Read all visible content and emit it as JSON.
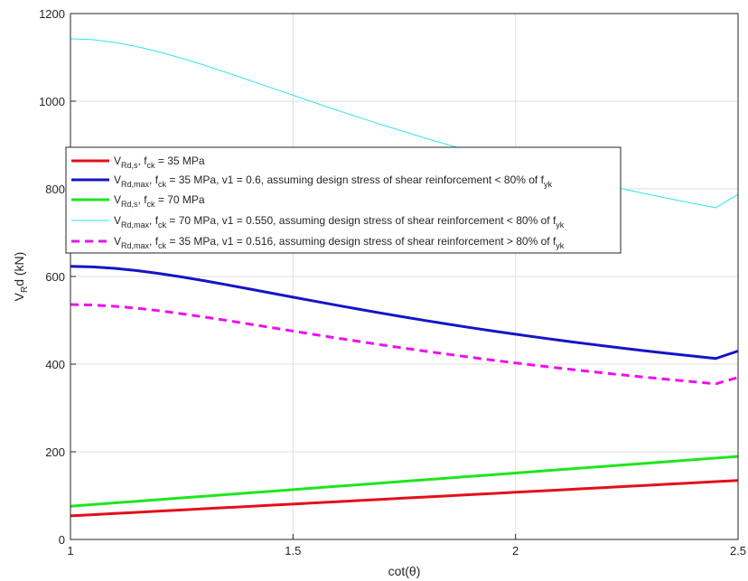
{
  "chart_data": {
    "type": "line",
    "xlabel": "cot(θ)",
    "ylabel": "V",
    "ylabel_sub": "R",
    "ylabel_rest": "d (kN)",
    "xlim": [
      1,
      2.5
    ],
    "ylim": [
      0,
      1200
    ],
    "grid": true,
    "legend_placement": "upper-left (inside, around y=700–850)",
    "x_ticks": [
      1,
      1.5,
      2,
      2.5
    ],
    "x_tick_labels": [
      "1",
      "1.5",
      "2",
      "2.5"
    ],
    "y_ticks": [
      0,
      200,
      400,
      600,
      800,
      1000,
      1200
    ],
    "y_tick_labels": [
      "0",
      "200",
      "400",
      "600",
      "800",
      "1000",
      "1200"
    ],
    "x": [
      1.0,
      1.05,
      1.1,
      1.15,
      1.2,
      1.25,
      1.3,
      1.35,
      1.4,
      1.45,
      1.5,
      1.55,
      1.6,
      1.65,
      1.7,
      1.75,
      1.8,
      1.85,
      1.9,
      1.95,
      2.0,
      2.05,
      2.1,
      2.15,
      2.2,
      2.25,
      2.3,
      2.35,
      2.4,
      2.45,
      2.5
    ],
    "series": [
      {
        "key": "vrds35",
        "legend_parts": [
          [
            "V",
            "normal"
          ],
          [
            "Rd,s",
            "sub"
          ],
          [
            ", f",
            "normal"
          ],
          [
            "ck",
            "sub"
          ],
          [
            " = 35 MPa",
            "normal"
          ]
        ],
        "color": "#e3101a",
        "width": 3,
        "dash": "",
        "values": [
          53.8,
          56.5,
          59.2,
          61.9,
          64.6,
          67.3,
          70.0,
          72.6,
          75.3,
          78.0,
          80.7,
          83.4,
          86.1,
          88.8,
          91.5,
          94.2,
          96.9,
          99.6,
          102.3,
          105.0,
          107.6,
          110.3,
          113.0,
          115.7,
          118.4,
          121.1,
          123.8,
          126.5,
          129.2,
          131.9,
          134.6
        ]
      },
      {
        "key": "vrdmax35",
        "legend_parts": [
          [
            "V",
            "normal"
          ],
          [
            "Rd,max",
            "sub"
          ],
          [
            ", f",
            "normal"
          ],
          [
            "ck",
            "sub"
          ],
          [
            " = 35 MPa, v1 = 0.6, assuming design stress of shear reinforcement < 80% of f",
            "normal"
          ],
          [
            "yk",
            "sub"
          ]
        ],
        "color": "#1414c8",
        "width": 3,
        "dash": "",
        "values": [
          623.2,
          622.0,
          618.6,
          613.4,
          606.7,
          598.9,
          590.4,
          581.3,
          571.9,
          562.4,
          552.9,
          543.4,
          534.1,
          525.0,
          516.1,
          507.5,
          499.1,
          491.0,
          483.1,
          475.5,
          468.2,
          461.2,
          454.4,
          447.8,
          441.4,
          435.3,
          429.4,
          423.7,
          418.2,
          412.9,
          429.9
        ]
      },
      {
        "key": "vrds70",
        "legend_parts": [
          [
            "V",
            "normal"
          ],
          [
            "Rd,s",
            "sub"
          ],
          [
            ", f",
            "normal"
          ],
          [
            "ck",
            "sub"
          ],
          [
            " = 70 MPa",
            "normal"
          ]
        ],
        "color": "#1ee61e",
        "width": 3,
        "dash": "",
        "values": [
          75.8,
          79.6,
          83.4,
          87.2,
          91.0,
          94.8,
          98.5,
          102.3,
          106.1,
          109.9,
          113.7,
          117.5,
          121.3,
          125.1,
          128.9,
          132.7,
          136.4,
          140.2,
          144.0,
          147.8,
          151.6,
          155.4,
          159.2,
          163.0,
          166.8,
          170.6,
          174.3,
          178.1,
          181.9,
          185.7,
          189.5
        ]
      },
      {
        "key": "vrdmax70",
        "legend_parts": [
          [
            "V",
            "normal"
          ],
          [
            "Rd,max",
            "sub"
          ],
          [
            ", f",
            "normal"
          ],
          [
            "ck",
            "sub"
          ],
          [
            " = 70 MPa, v1 = 0.550, assuming design stress of shear reinforcement < 80% of f",
            "normal"
          ],
          [
            "yk",
            "sub"
          ]
        ],
        "color": "#2ee6ee",
        "width": 1,
        "dash": "",
        "values": [
          1142.5,
          1140.4,
          1134.1,
          1124.5,
          1112.3,
          1098.0,
          1082.4,
          1065.7,
          1048.5,
          1031.1,
          1013.6,
          996.2,
          979.2,
          962.5,
          946.2,
          930.4,
          915.0,
          900.2,
          885.8,
          871.8,
          858.3,
          845.4,
          833.0,
          821.0,
          809.3,
          798.0,
          787.2,
          776.8,
          766.6,
          756.9,
          787.5
        ]
      },
      {
        "key": "vrdmax35b",
        "legend_parts": [
          [
            "V",
            "normal"
          ],
          [
            "Rd,max",
            "sub"
          ],
          [
            ", f",
            "normal"
          ],
          [
            "ck",
            "sub"
          ],
          [
            " = 35 MPa, v1 = 0.516, assuming design stress of shear reinforcement > 80% of f",
            "normal"
          ],
          [
            "yk",
            "sub"
          ]
        ],
        "color": "#ee10ee",
        "width": 3,
        "dash": "9,6",
        "values": [
          536.0,
          534.9,
          532.0,
          527.5,
          521.8,
          515.0,
          507.7,
          499.9,
          491.8,
          483.7,
          475.5,
          467.3,
          459.3,
          451.5,
          443.8,
          436.5,
          429.2,
          422.3,
          415.5,
          408.9,
          402.7,
          396.6,
          390.8,
          385.1,
          379.6,
          374.4,
          369.3,
          364.4,
          359.7,
          355.1,
          369.7
        ]
      }
    ]
  }
}
